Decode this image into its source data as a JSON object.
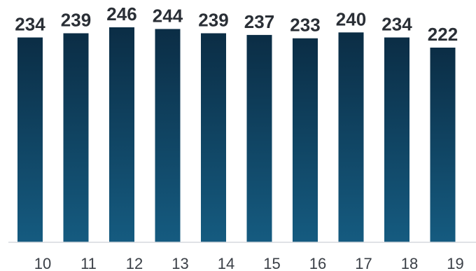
{
  "chart_data": {
    "type": "bar",
    "categories": [
      "10",
      "11",
      "12",
      "13",
      "14",
      "15",
      "16",
      "17",
      "18",
      "19"
    ],
    "values": [
      234,
      239,
      246,
      244,
      239,
      237,
      233,
      240,
      234,
      222
    ],
    "data_labels": [
      "234",
      "239",
      "246",
      "244",
      "239",
      "237",
      "233",
      "240",
      "234",
      "222"
    ],
    "title": "",
    "xlabel": "",
    "ylabel": "",
    "ylim": [
      0,
      246
    ],
    "grid": false,
    "legend": "none",
    "colors": {
      "bar_top": "#0b2d45",
      "bar_bottom": "#155b80",
      "axis": "#d6d9dd"
    }
  }
}
